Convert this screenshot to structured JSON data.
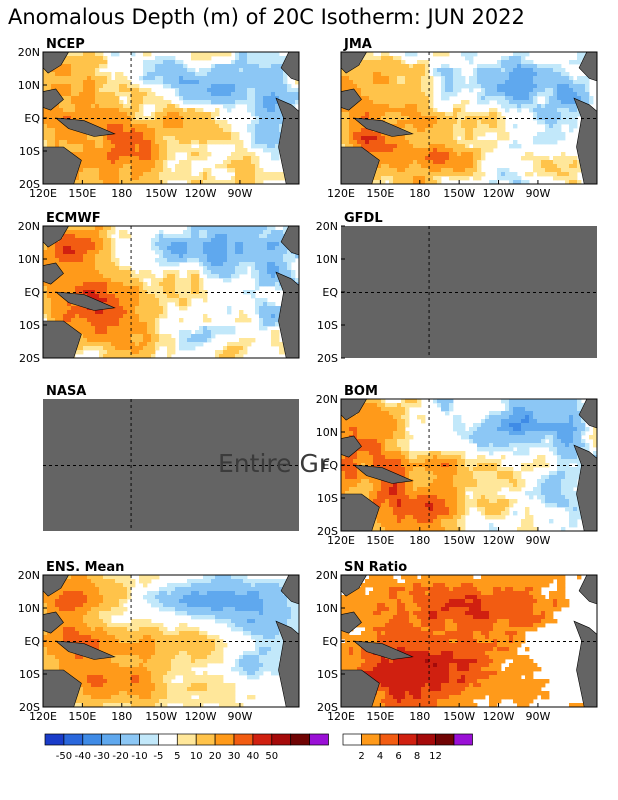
{
  "title": "Anomalous Depth (m) of 20C Isotherm: JUN 2022",
  "xticks": [
    "120E",
    "150E",
    "180",
    "150W",
    "120W",
    "90W"
  ],
  "yticks": [
    "20N",
    "10N",
    "EQ",
    "10S",
    "20S"
  ],
  "overlay_text": "Entire Gr",
  "panels": [
    {
      "label": "NCEP",
      "has_data": true,
      "scale": "depth",
      "pattern": "warm west and equatorial band, deep positive anomalies 10S-20S near 150E-180, negative anomalies north of equator and in the east"
    },
    {
      "label": "JMA",
      "has_data": true,
      "scale": "depth",
      "pattern": "strong positive anomalies across the west and south of equator, negative anomalies north and east"
    },
    {
      "label": "GFDL",
      "has_data": false,
      "scale": "depth",
      "pattern": "no data"
    },
    {
      "label": "ECMWF",
      "has_data": true,
      "scale": "depth",
      "pattern": "positive anomalies along the equator and in the southwest, negative anomalies in the north and east"
    },
    {
      "label": "NASA",
      "has_data": false,
      "scale": "depth",
      "pattern": "no data"
    },
    {
      "label": "BOM",
      "has_data": true,
      "scale": "depth",
      "pattern": "strong positive anomalies south of equator, negative anomalies north and east"
    },
    {
      "label": "ENS. Mean",
      "has_data": true,
      "scale": "depth",
      "pattern": "ensemble mean: positive anomalies in the west and south, negative in the northeast"
    },
    {
      "label": "SN Ratio",
      "has_data": true,
      "scale": "snr",
      "pattern": "high signal-to-noise patches across the basin, highest in the southwest"
    }
  ],
  "colorbars": {
    "depth": {
      "labels": [
        "-50",
        "-40",
        "-30",
        "-20",
        "-10",
        "-5",
        "5",
        "10",
        "20",
        "30",
        "40",
        "50"
      ],
      "colors": [
        "#1a3cc9",
        "#2a67dc",
        "#3f8be6",
        "#5fa8ee",
        "#8cc7f5",
        "#c2e8fa",
        "#ffffff",
        "#ffe79a",
        "#ffc34a",
        "#ff9a1a",
        "#f25c12",
        "#d02010",
        "#a50a0a",
        "#700404",
        "#9a10d6"
      ]
    },
    "snr": {
      "labels": [
        "2",
        "4",
        "6",
        "8",
        "12"
      ],
      "colors": [
        "#ffffff",
        "#ff9a1a",
        "#f25c12",
        "#d02010",
        "#a50a0a",
        "#700404",
        "#9a10d6"
      ]
    }
  },
  "chart_data": {
    "type": "heatmap",
    "title": "Anomalous Depth (m) of 20C Isotherm: JUN 2022",
    "x_range": [
      "120E",
      "75W"
    ],
    "y_range": [
      "20S",
      "20N"
    ],
    "xticks": [
      "120E",
      "150E",
      "180",
      "150W",
      "120W",
      "90W"
    ],
    "yticks": [
      "20N",
      "10N",
      "EQ",
      "10S",
      "20S"
    ],
    "depth_levels": [
      -50,
      -40,
      -30,
      -20,
      -10,
      -5,
      5,
      10,
      20,
      30,
      40,
      50
    ],
    "snr_levels": [
      2,
      4,
      6,
      8,
      12
    ],
    "reference_lines": [
      "EQ",
      "180"
    ],
    "colors": {
      "missing": "#646464",
      "land": "#646464"
    }
  }
}
